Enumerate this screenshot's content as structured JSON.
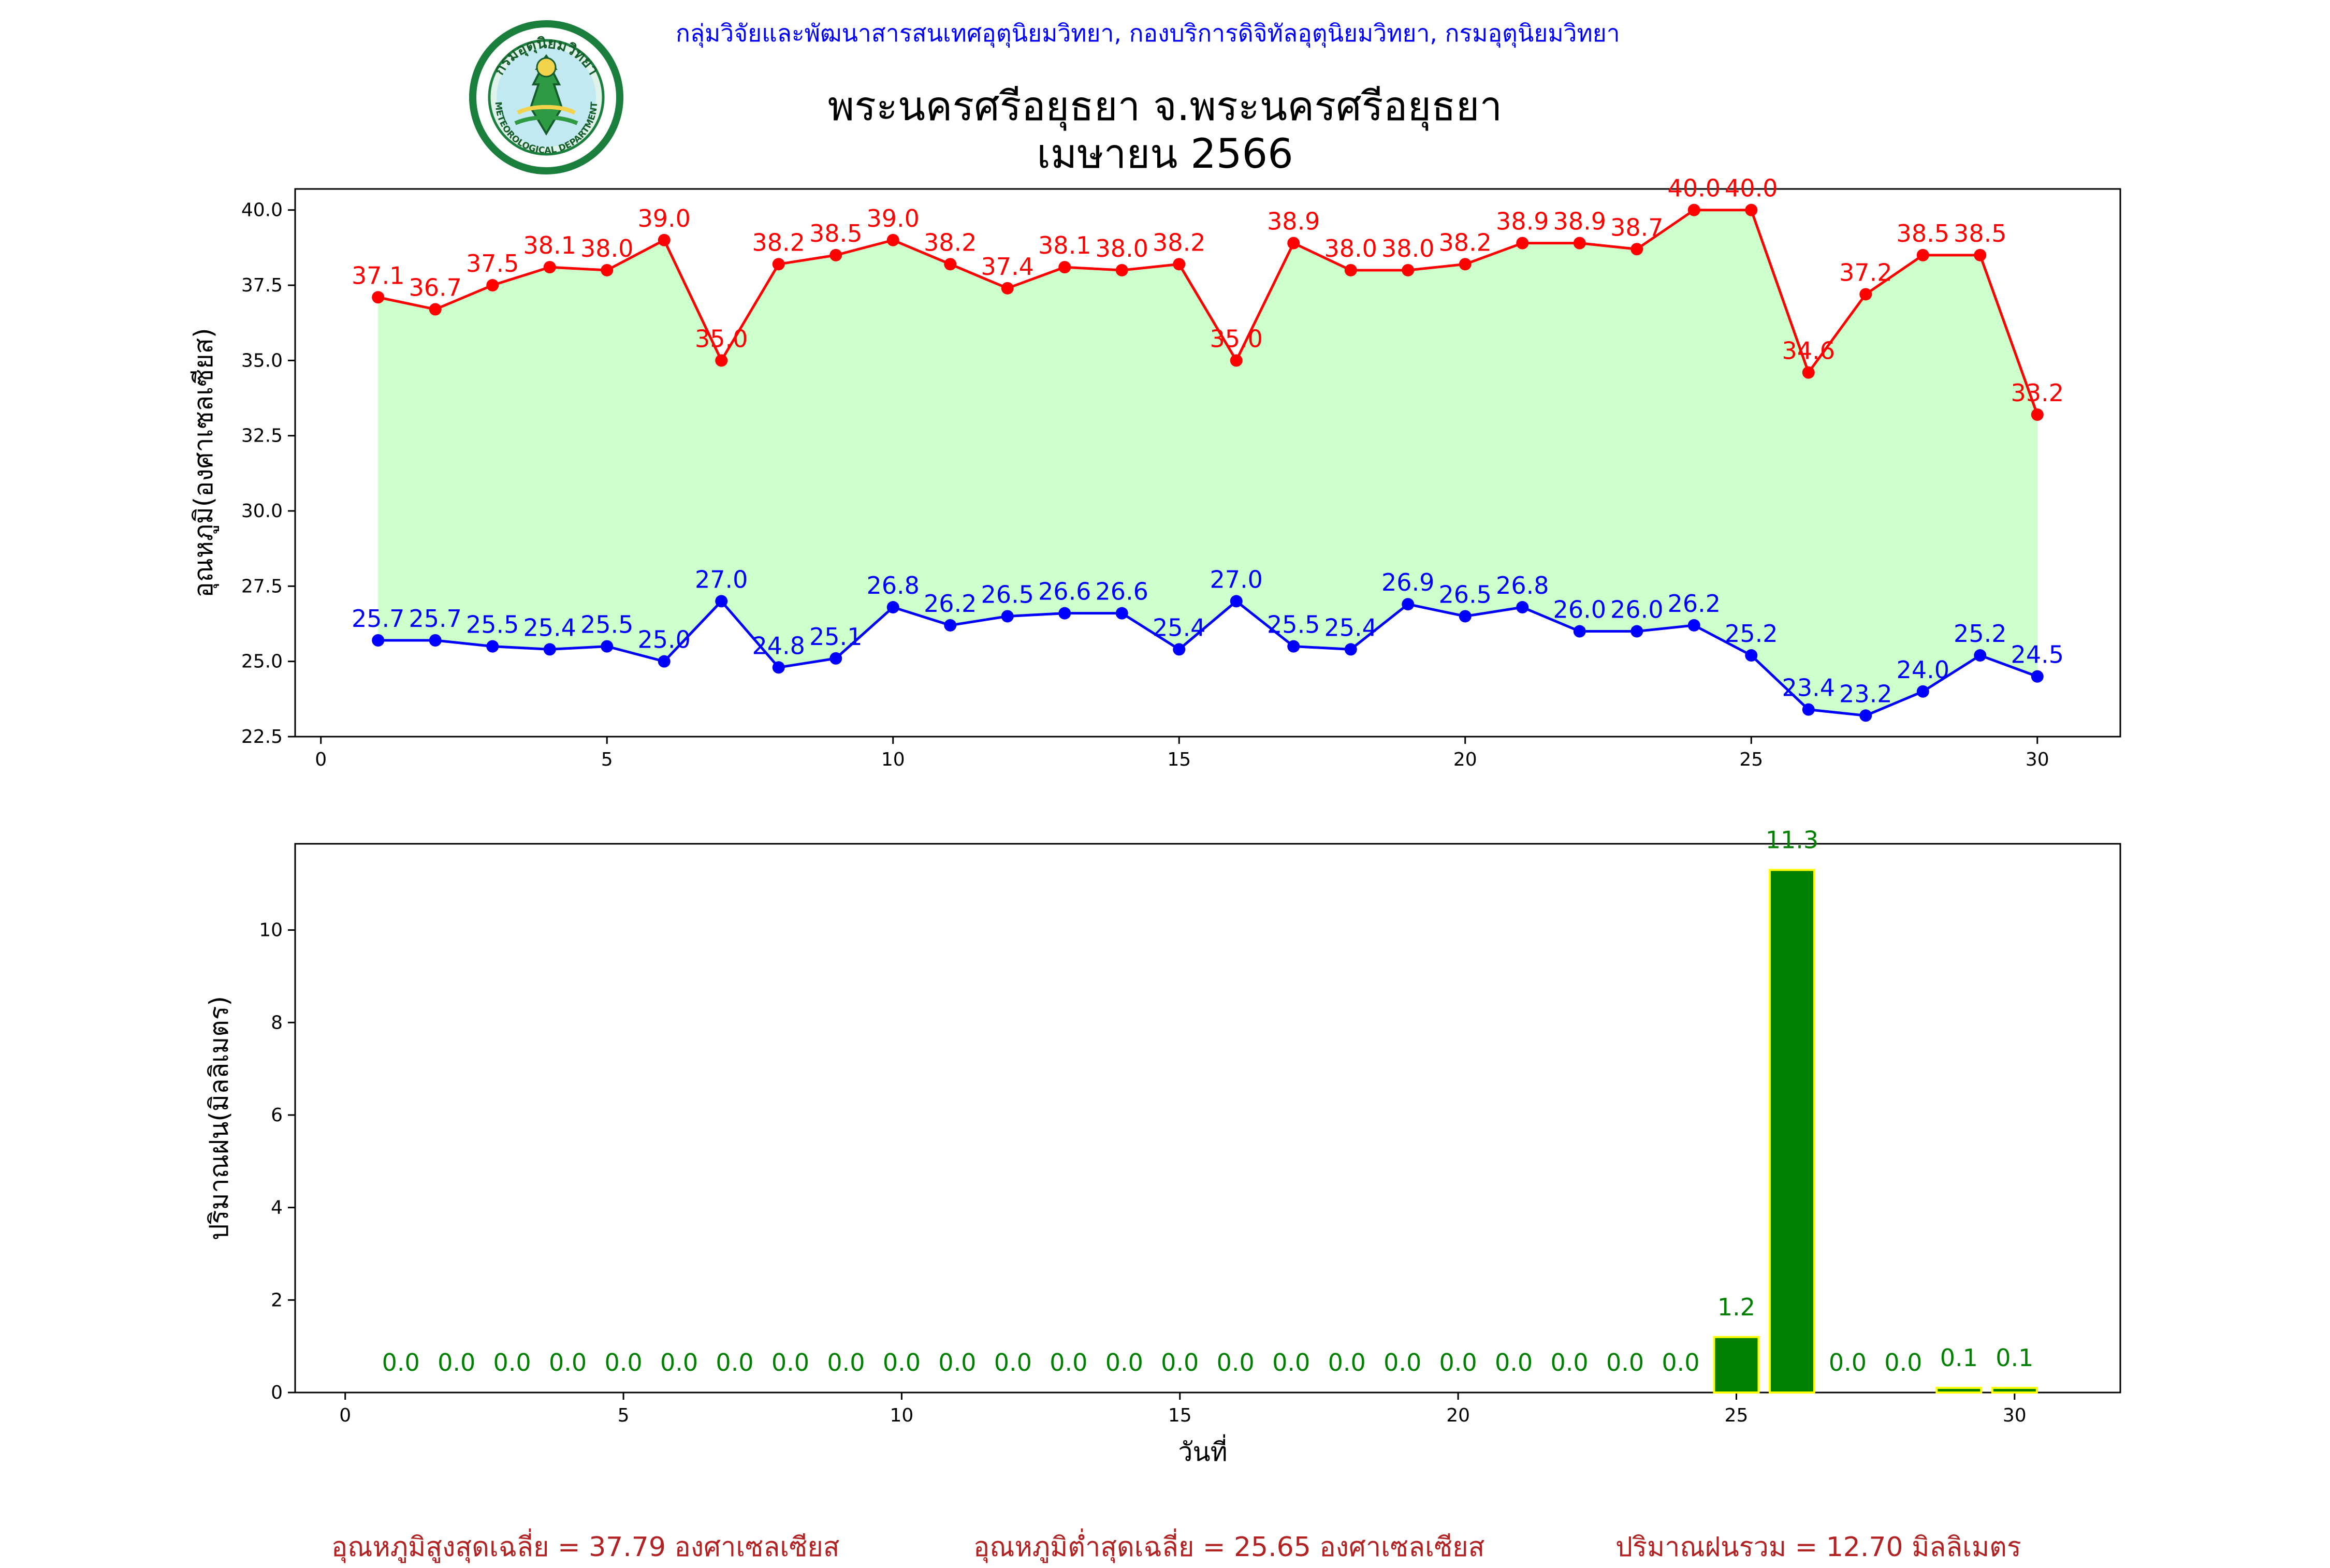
{
  "header": {
    "top_text": "กลุ่มวิจัยและพัฒนาสารสนเทศอุตุนิยมวิทยา, กองบริการดิจิทัลอุตุนิยมวิทยา, กรมอุตุนิยมวิทยา",
    "title_line1": "พระนครศรีอยุธยา จ.พระนครศรีอยุธยา",
    "title_line2": "เมษายน 2566",
    "logo": {
      "ring_text": "กรมอุตุนิยมวิทยา",
      "bottom_text": "METEOROLOGICAL DEPARTMENT",
      "icon_name": "meteorological-department-logo"
    }
  },
  "colors": {
    "max_line": "#ff0000",
    "min_line": "#0000ff",
    "fill_between": "#ccffcc",
    "bar_fill": "#008000",
    "bar_edge": "#ffff00",
    "summary_text": "#b22222",
    "top_text": "#0000ff"
  },
  "summary": {
    "avg_max": "อุณหภูมิสูงสุดเฉลี่ย = 37.79 องศาเซลเซียส",
    "avg_min": "อุณหภูมิต่ำสุดเฉลี่ย = 25.65 องศาเซลเซียส",
    "rain_total": "ปริมาณฝนรวม = 12.70 มิลลิเมตร"
  },
  "chart_data": [
    {
      "type": "line",
      "title": "",
      "xlabel": "",
      "ylabel": "อุณหภูมิ(องศาเซลเซียส)",
      "x": [
        1,
        2,
        3,
        4,
        5,
        6,
        7,
        8,
        9,
        10,
        11,
        12,
        13,
        14,
        15,
        16,
        17,
        18,
        19,
        20,
        21,
        22,
        23,
        24,
        25,
        26,
        27,
        28,
        29,
        30
      ],
      "xlim": [
        -0.45,
        31.45
      ],
      "ylim": [
        22.5,
        40.7
      ],
      "xticks": [
        0,
        5,
        10,
        15,
        20,
        25,
        30
      ],
      "xtick_labels": [
        "0",
        "5",
        "10",
        "15",
        "20",
        "25",
        "30"
      ],
      "yticks": [
        22.5,
        25.0,
        27.5,
        30.0,
        32.5,
        35.0,
        37.5,
        40.0
      ],
      "ytick_labels": [
        "22.5",
        "25.0",
        "27.5",
        "30.0",
        "32.5",
        "35.0",
        "37.5",
        "40.0"
      ],
      "grid": false,
      "fill_between": true,
      "series": [
        {
          "values": [
            37.1,
            36.7,
            37.5,
            38.1,
            38.0,
            39.0,
            35.0,
            38.2,
            38.5,
            39.0,
            38.2,
            37.4,
            38.1,
            38.0,
            38.2,
            35.0,
            38.9,
            38.0,
            38.0,
            38.2,
            38.9,
            38.9,
            38.7,
            40.0,
            40.0,
            34.6,
            37.2,
            38.5,
            38.5,
            33.2
          ],
          "labels": [
            "37.1",
            "36.7",
            "37.5",
            "38.1",
            "38.0",
            "39.0",
            "35.0",
            "38.2",
            "38.5",
            "39.0",
            "38.2",
            "37.4",
            "38.1",
            "38.0",
            "38.2",
            "35.0",
            "38.9",
            "38.0",
            "38.0",
            "38.2",
            "38.9",
            "38.9",
            "38.7",
            "40.0",
            "40.0",
            "34.6",
            "37.2",
            "38.5",
            "38.5",
            "33.2"
          ],
          "color": "#ff0000"
        },
        {
          "values": [
            25.7,
            25.7,
            25.5,
            25.4,
            25.5,
            25.0,
            27.0,
            24.8,
            25.1,
            26.8,
            26.2,
            26.5,
            26.6,
            26.6,
            25.4,
            27.0,
            25.5,
            25.4,
            26.9,
            26.5,
            26.8,
            26.0,
            26.0,
            26.2,
            25.2,
            23.4,
            23.2,
            24.0,
            25.2,
            24.5
          ],
          "labels": [
            "25.7",
            "25.7",
            "25.5",
            "25.4",
            "25.5",
            "25.0",
            "27.0",
            "24.8",
            "25.1",
            "26.8",
            "26.2",
            "26.5",
            "26.6",
            "26.6",
            "25.4",
            "27.0",
            "25.5",
            "25.4",
            "26.9",
            "26.5",
            "26.8",
            "26.0",
            "26.0",
            "26.2",
            "25.2",
            "23.4",
            "23.2",
            "24.0",
            "25.2",
            "24.5"
          ],
          "color": "#0000ff"
        }
      ]
    },
    {
      "type": "bar",
      "title": "",
      "xlabel": "วันที่",
      "ylabel": "ปริมาณฝน(มิลลิเมตร)",
      "x": [
        1,
        2,
        3,
        4,
        5,
        6,
        7,
        8,
        9,
        10,
        11,
        12,
        13,
        14,
        15,
        16,
        17,
        18,
        19,
        20,
        21,
        22,
        23,
        24,
        25,
        26,
        27,
        28,
        29,
        30
      ],
      "xlim": [
        -0.9,
        31.9
      ],
      "ylim": [
        0,
        11.865
      ],
      "xticks": [
        0,
        5,
        10,
        15,
        20,
        25,
        30
      ],
      "xtick_labels": [
        "0",
        "5",
        "10",
        "15",
        "20",
        "25",
        "30"
      ],
      "yticks": [
        0,
        2,
        4,
        6,
        8,
        10
      ],
      "ytick_labels": [
        "0",
        "2",
        "4",
        "6",
        "8",
        "10"
      ],
      "grid": false,
      "values": [
        0.0,
        0.0,
        0.0,
        0.0,
        0.0,
        0.0,
        0.0,
        0.0,
        0.0,
        0.0,
        0.0,
        0.0,
        0.0,
        0.0,
        0.0,
        0.0,
        0.0,
        0.0,
        0.0,
        0.0,
        0.0,
        0.0,
        0.0,
        0.0,
        1.2,
        11.3,
        0.0,
        0.0,
        0.1,
        0.1
      ],
      "labels": [
        "0.0",
        "0.0",
        "0.0",
        "0.0",
        "0.0",
        "0.0",
        "0.0",
        "0.0",
        "0.0",
        "0.0",
        "0.0",
        "0.0",
        "0.0",
        "0.0",
        "0.0",
        "0.0",
        "0.0",
        "0.0",
        "0.0",
        "0.0",
        "0.0",
        "0.0",
        "0.0",
        "0.0",
        "1.2",
        "11.3",
        "0.0",
        "0.0",
        "0.1",
        "0.1"
      ]
    }
  ]
}
